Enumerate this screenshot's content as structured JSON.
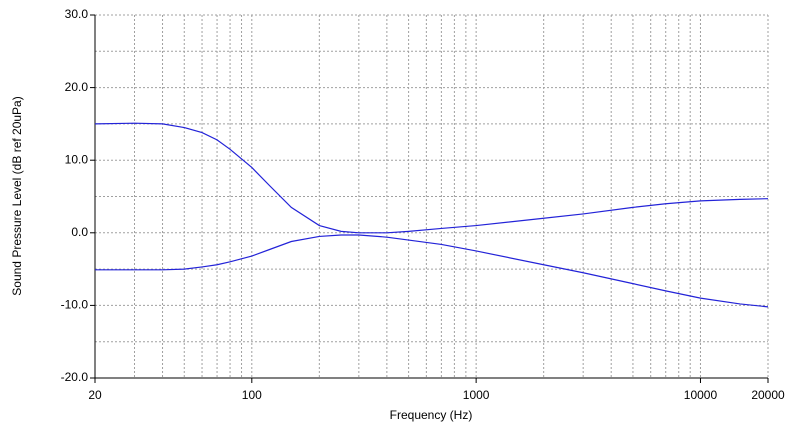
{
  "chart_data": {
    "type": "line",
    "x_label": "Frequency (Hz)",
    "y_label": "Sound Pressure Level (dB ref 20uPa)",
    "log_x": true,
    "grid": true,
    "x": [
      20,
      30,
      40,
      50,
      60,
      70,
      80,
      100,
      120,
      150,
      200,
      250,
      300,
      400,
      500,
      700,
      1000,
      2000,
      3000,
      5000,
      7000,
      10000,
      15000,
      20000
    ],
    "series": [
      {
        "color": "#2323d8",
        "values": [
          15,
          15.1,
          15,
          14.5,
          13.8,
          12.8,
          11.5,
          9,
          6.5,
          3.5,
          1,
          0.2,
          0,
          0,
          0.2,
          0.6,
          1,
          2,
          2.6,
          3.5,
          4,
          4.4,
          4.6,
          4.7
        ]
      },
      {
        "color": "#2323d8",
        "values": [
          -5.1,
          -5.1,
          -5.1,
          -5,
          -4.7,
          -4.4,
          -4,
          -3.2,
          -2.3,
          -1.2,
          -0.5,
          -0.3,
          -0.3,
          -0.6,
          -1,
          -1.6,
          -2.5,
          -4.4,
          -5.5,
          -7,
          -8,
          -9,
          -9.8,
          -10.2
        ]
      }
    ],
    "xlim": [
      20,
      20000
    ],
    "xticks": [
      20,
      100,
      1000,
      10000,
      20000
    ],
    "xminorticks": [
      30,
      40,
      50,
      60,
      70,
      80,
      90,
      200,
      300,
      400,
      500,
      600,
      700,
      800,
      900,
      2000,
      3000,
      4000,
      5000,
      6000,
      7000,
      8000,
      9000
    ],
    "ylim": [
      -20,
      30
    ],
    "yticks": [
      {
        "value": -20,
        "label": "-20.0"
      },
      {
        "value": -10,
        "label": "-10.0"
      },
      {
        "value": 0,
        "label": "0.0"
      },
      {
        "value": 10,
        "label": "10.0"
      },
      {
        "value": 20,
        "label": "20.0"
      },
      {
        "value": 30,
        "label": "30.0"
      }
    ],
    "yminorticks": [
      -15,
      -5,
      5,
      15,
      25
    ]
  }
}
